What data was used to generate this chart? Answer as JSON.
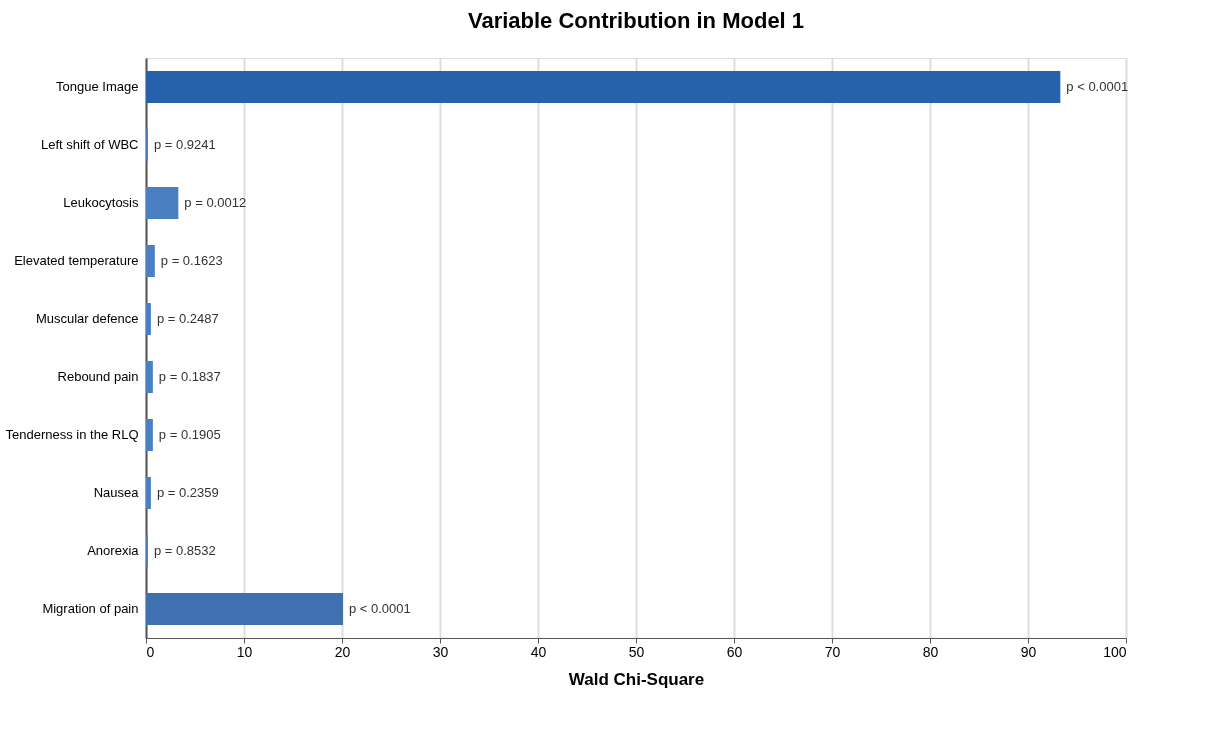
{
  "chart_data": {
    "type": "bar",
    "orientation": "horizontal",
    "title": "Variable Contribution in Model 1",
    "xlabel": "Wald Chi-Square",
    "categories": [
      "Tongue Image",
      "Left shift of WBC",
      "Leukocytosis",
      "Elevated temperature",
      "Muscular defence",
      "Rebound pain",
      "Tenderness in the RLQ",
      "Nausea",
      "Anorexia",
      "Migration of pain"
    ],
    "values": [
      93.3,
      0.2,
      3.3,
      0.9,
      0.5,
      0.7,
      0.7,
      0.5,
      0.2,
      20.1
    ],
    "colors": [
      "#2562ab",
      "#4a7fc2",
      "#4a7fc2",
      "#4a7fc2",
      "#4a7fc2",
      "#4a7fc2",
      "#4a7fc2",
      "#4a7fc2",
      "#4a7fc2",
      "#3f70b0"
    ],
    "annotations": [
      {
        "text": "p < 0.0001",
        "x": 93.3,
        "y": "Tongue Image"
      },
      {
        "text": "p = 0.9241",
        "x": 0.2,
        "y": "Left shift of WBC"
      },
      {
        "text": "p = 0.0012",
        "x": 3.3,
        "y": "Leukocytosis"
      },
      {
        "text": "p = 0.1623",
        "x": 0.9,
        "y": "Elevated temperature"
      },
      {
        "text": "p = 0.2487",
        "x": 0.5,
        "y": "Muscular defence"
      },
      {
        "text": "p = 0.1837",
        "x": 0.7,
        "y": "Rebound pain"
      },
      {
        "text": "p = 0.1905",
        "x": 0.7,
        "y": "Tenderness in the RLQ"
      },
      {
        "text": "p = 0.2359",
        "x": 0.5,
        "y": "Nausea"
      },
      {
        "text": "p = 0.8532",
        "x": 0.2,
        "y": "Anorexia"
      },
      {
        "text": "p < 0.0001",
        "x": 20.1,
        "y": "Migration of pain"
      }
    ],
    "xlim": [
      0,
      100
    ],
    "xticks": [
      0,
      10,
      20,
      30,
      40,
      50,
      60,
      70,
      80,
      90,
      100
    ],
    "grid": "x"
  }
}
